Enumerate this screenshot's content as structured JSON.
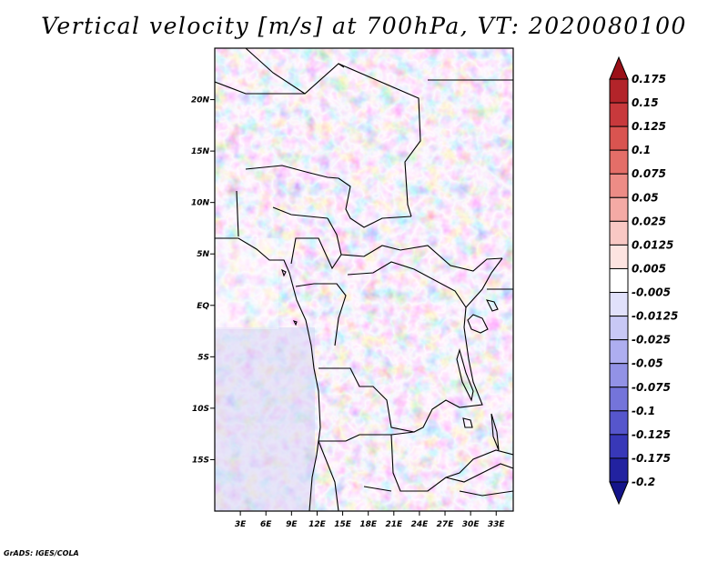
{
  "title": "Vertical velocity [m/s] at 700hPa, VT: 2020080100",
  "footer": "GrADS: IGES/COLA",
  "map": {
    "variable": "Vertical velocity",
    "units": "m/s",
    "level": "700hPa",
    "valid_time": "2020080100",
    "lon_range": [
      0,
      35
    ],
    "lat_range": [
      -20,
      25
    ],
    "lon_ticks": [
      {
        "value": 3,
        "label": "3E"
      },
      {
        "value": 6,
        "label": "6E"
      },
      {
        "value": 9,
        "label": "9E"
      },
      {
        "value": 12,
        "label": "12E"
      },
      {
        "value": 15,
        "label": "15E"
      },
      {
        "value": 18,
        "label": "18E"
      },
      {
        "value": 21,
        "label": "21E"
      },
      {
        "value": 24,
        "label": "24E"
      },
      {
        "value": 27,
        "label": "27E"
      },
      {
        "value": 30,
        "label": "30E"
      },
      {
        "value": 33,
        "label": "33E"
      }
    ],
    "lat_ticks": [
      {
        "value": 20,
        "label": "20N"
      },
      {
        "value": 15,
        "label": "15N"
      },
      {
        "value": 10,
        "label": "10N"
      },
      {
        "value": 5,
        "label": "5N"
      },
      {
        "value": 0,
        "label": "EQ"
      },
      {
        "value": -5,
        "label": "5S"
      },
      {
        "value": -10,
        "label": "10S"
      },
      {
        "value": -15,
        "label": "15S"
      }
    ]
  },
  "colorbar": {
    "levels": [
      "0.175",
      "0.15",
      "0.125",
      "0.1",
      "0.075",
      "0.05",
      "0.025",
      "0.0125",
      "0.005",
      "-0.005",
      "-0.0125",
      "-0.025",
      "-0.05",
      "-0.075",
      "-0.1",
      "-0.125",
      "-0.175",
      "-0.2"
    ],
    "colors": [
      "#9b1018",
      "#b3242a",
      "#c8393c",
      "#d95450",
      "#e46e68",
      "#ed8c86",
      "#f4aaa5",
      "#f9c8c4",
      "#fde4e1",
      "#ffffff",
      "#e1e1fb",
      "#c8c8f5",
      "#aeaef0",
      "#9292e6",
      "#7474da",
      "#5656cc",
      "#3838b8",
      "#2222a0",
      "#14148a"
    ]
  }
}
